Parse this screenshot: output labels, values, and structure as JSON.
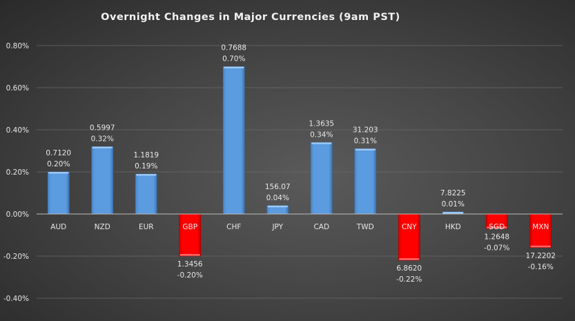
{
  "chart_data": {
    "type": "bar",
    "title": "Overnight Changes in Major Currencies (9am PST)",
    "xlabel": "",
    "ylabel": "",
    "ylim": [
      -0.4,
      0.8
    ],
    "yticks": [
      "-0.40%",
      "-0.20%",
      "0.00%",
      "0.20%",
      "0.40%",
      "0.60%",
      "0.80%"
    ],
    "ytick_values": [
      -0.4,
      -0.2,
      0.0,
      0.2,
      0.4,
      0.6,
      0.8
    ],
    "grid": true,
    "categories": [
      "AUD",
      "NZD",
      "EUR",
      "GBP",
      "CHF",
      "JPY",
      "CAD",
      "TWD",
      "CNY",
      "HKD",
      "SGD",
      "MXN"
    ],
    "values": [
      0.2,
      0.32,
      0.19,
      -0.2,
      0.7,
      0.04,
      0.34,
      0.31,
      -0.22,
      0.01,
      -0.07,
      -0.16
    ],
    "value_labels": [
      "0.20%",
      "0.32%",
      "0.19%",
      "-0.20%",
      "0.70%",
      "0.04%",
      "0.34%",
      "0.31%",
      "-0.22%",
      "0.01%",
      "-0.07%",
      "-0.16%"
    ],
    "rates": [
      "0.7120",
      "0.5997",
      "1.1819",
      "1.3456",
      "0.7688",
      "156.07",
      "1.3635",
      "31.203",
      "6.8620",
      "7.8225",
      "1.2648",
      "17.2202"
    ],
    "colors": {
      "positive": "#5b9bdf",
      "negative": "#ff0000"
    }
  }
}
